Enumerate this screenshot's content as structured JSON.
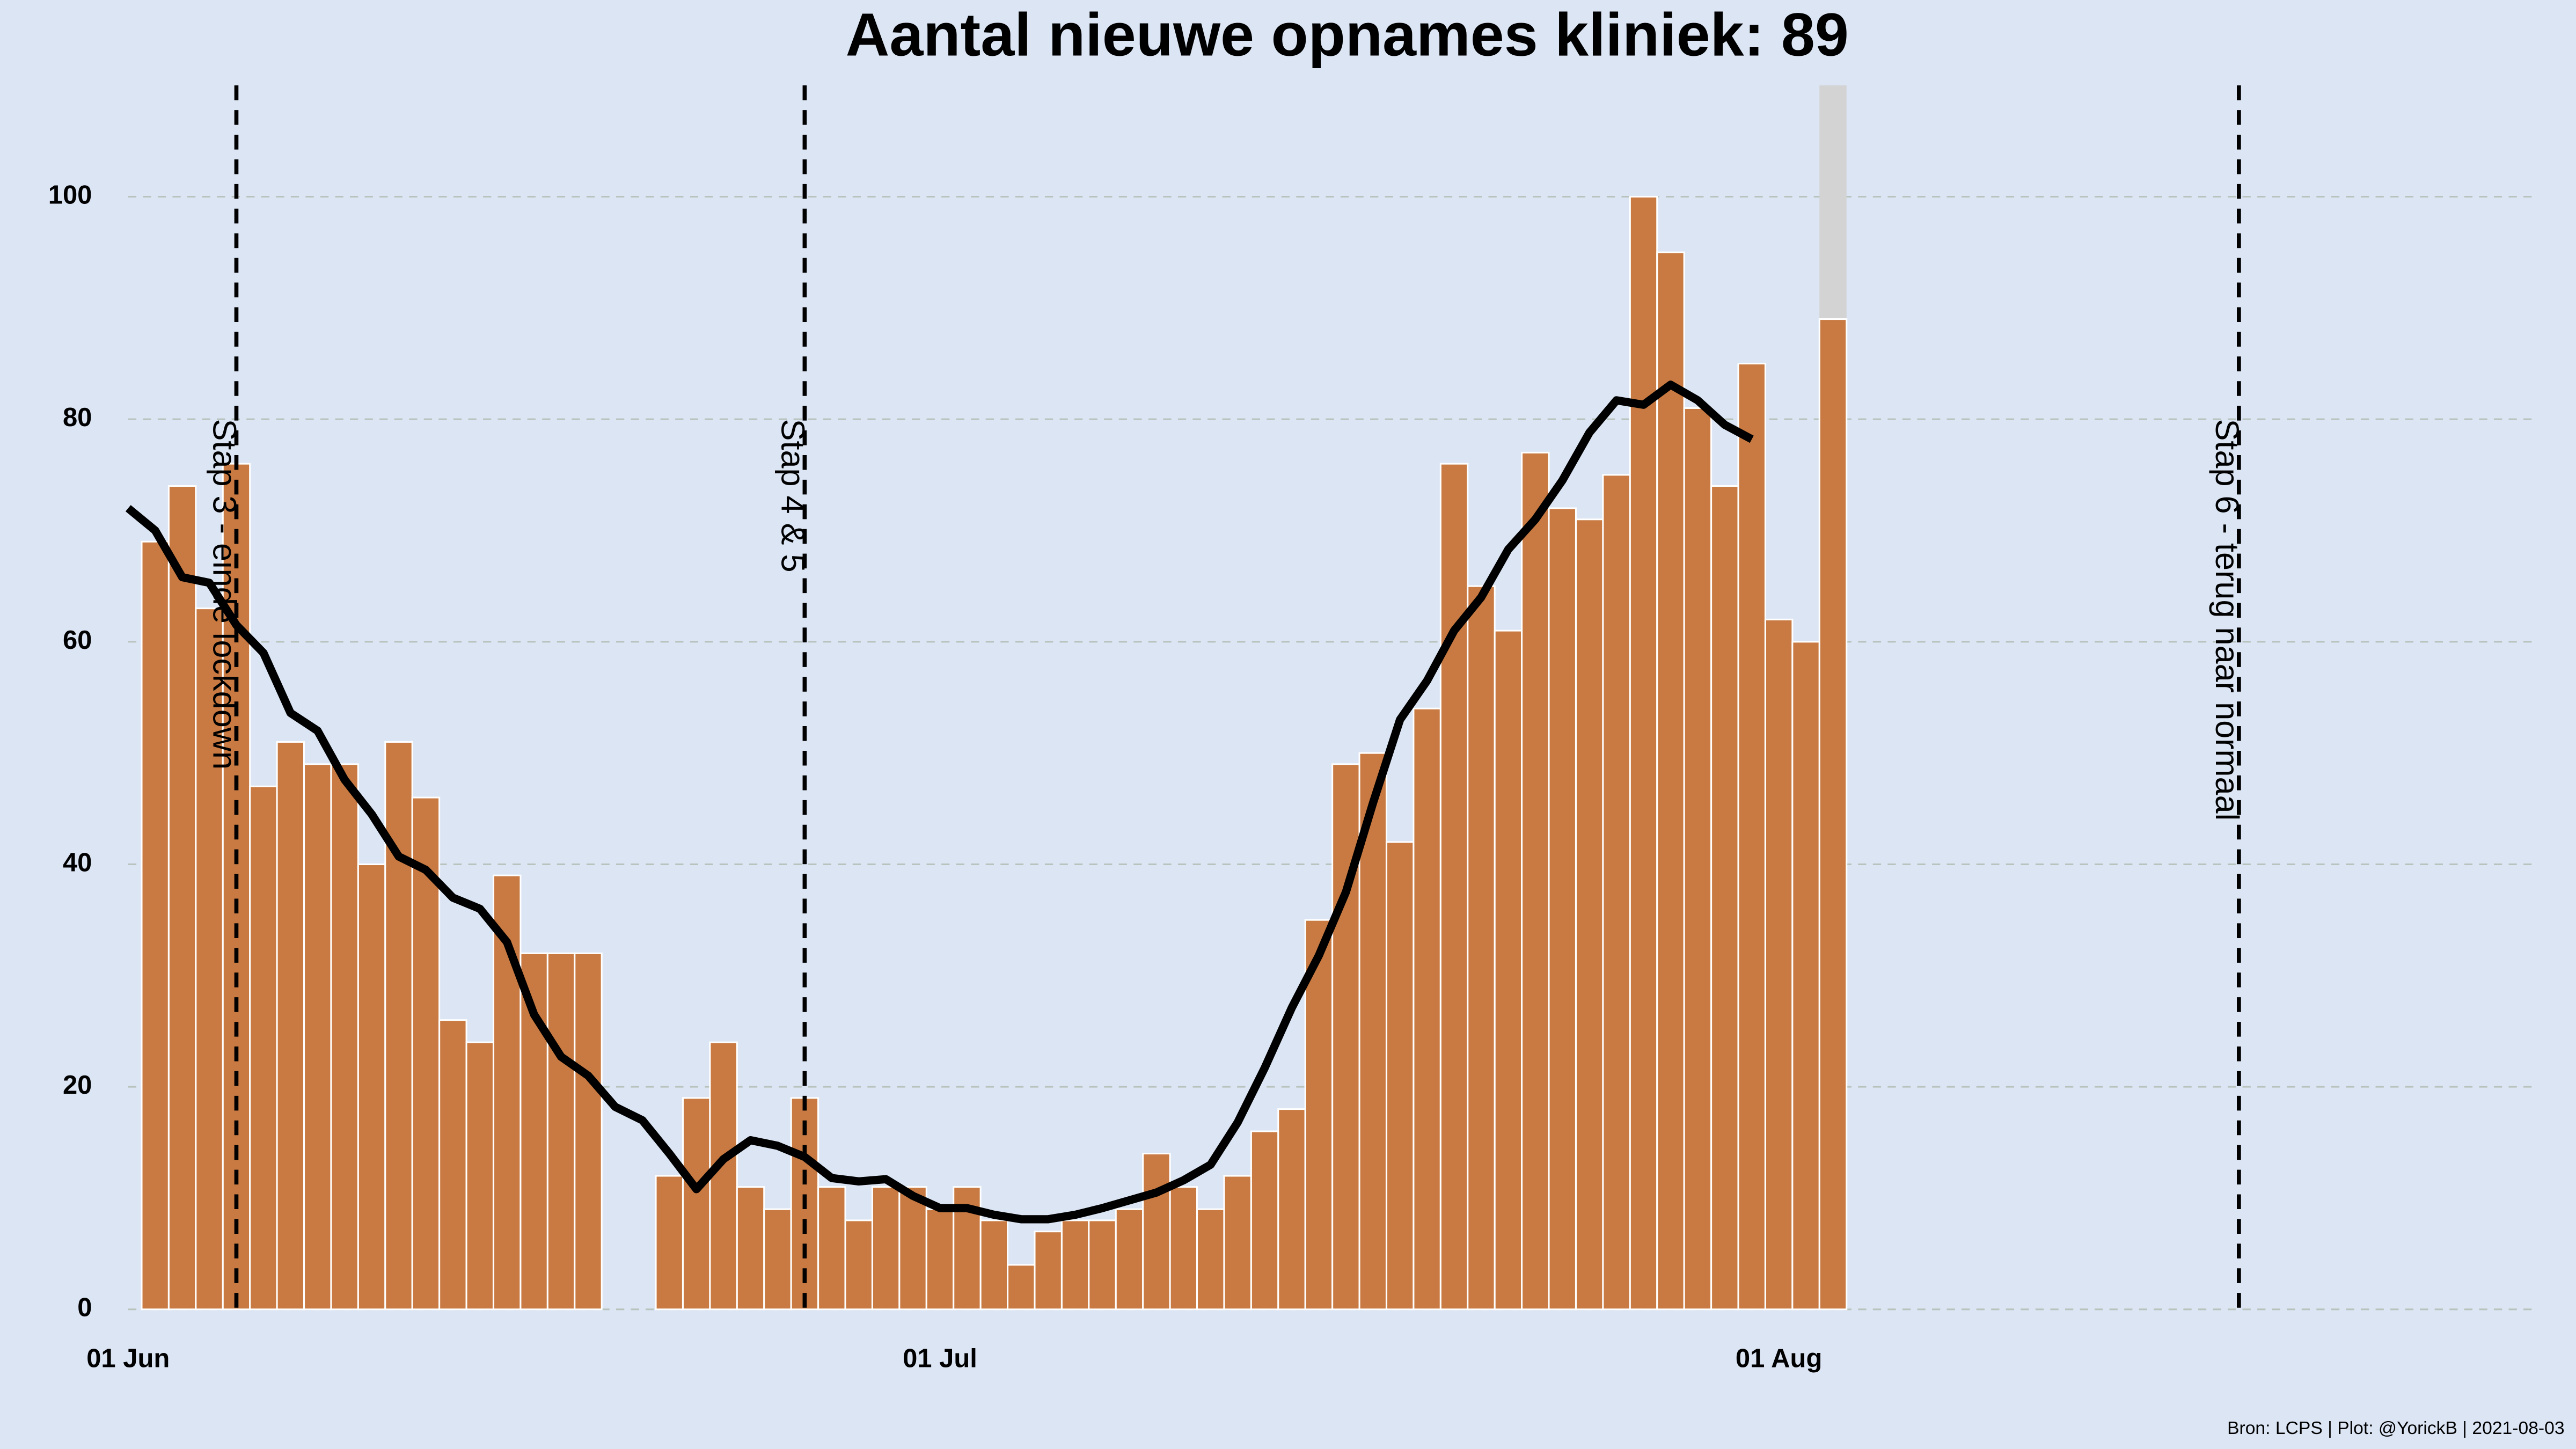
{
  "chart_data": {
    "type": "bar",
    "title": "Aantal nieuwe opnames kliniek:  89",
    "caption": "Bron: LCPS | Plot: @YorickB |  2021-08-03",
    "x": [
      "01 Jun",
      "02 Jun",
      "03 Jun",
      "04 Jun",
      "05 Jun",
      "06 Jun",
      "07 Jun",
      "08 Jun",
      "09 Jun",
      "10 Jun",
      "11 Jun",
      "12 Jun",
      "13 Jun",
      "14 Jun",
      "15 Jun",
      "16 Jun",
      "17 Jun",
      "18 Jun",
      "19 Jun",
      "20 Jun",
      "21 Jun",
      "22 Jun",
      "23 Jun",
      "24 Jun",
      "25 Jun",
      "26 Jun",
      "27 Jun",
      "28 Jun",
      "29 Jun",
      "30 Jun",
      "01 Jul",
      "02 Jul",
      "03 Jul",
      "04 Jul",
      "05 Jul",
      "06 Jul",
      "07 Jul",
      "08 Jul",
      "09 Jul",
      "10 Jul",
      "11 Jul",
      "12 Jul",
      "13 Jul",
      "14 Jul",
      "15 Jul",
      "16 Jul",
      "17 Jul",
      "18 Jul",
      "19 Jul",
      "20 Jul",
      "21 Jul",
      "22 Jul",
      "23 Jul",
      "24 Jul",
      "25 Jul",
      "26 Jul",
      "27 Jul",
      "28 Jul",
      "29 Jul",
      "30 Jul",
      "31 Jul",
      "01 Aug",
      "02 Aug",
      "03 Aug"
    ],
    "series": [
      {
        "type": "bar",
        "color": "#c87a42",
        "values": [
          null,
          69,
          74,
          63,
          76,
          47,
          51,
          49,
          49,
          40,
          51,
          46,
          26,
          24,
          39,
          32,
          32,
          32,
          null,
          null,
          12,
          19,
          24,
          11,
          9,
          19,
          11,
          8,
          11,
          11,
          9,
          11,
          8,
          4,
          7,
          8,
          8,
          9,
          14,
          11,
          9,
          12,
          16,
          18,
          35,
          49,
          50,
          42,
          54,
          76,
          65,
          61,
          77,
          72,
          71,
          75,
          100,
          95,
          81,
          74,
          85,
          62,
          60,
          89
        ]
      },
      {
        "type": "line",
        "color": "#000000",
        "values": [
          72,
          70,
          65.8,
          65.3,
          61.5,
          59,
          53.6,
          52,
          47.6,
          44.5,
          40.7,
          39.5,
          37,
          36,
          33,
          26.5,
          22.7,
          21,
          18.2,
          17,
          14,
          10.8,
          13.5,
          15.2,
          14.7,
          13.7,
          11.8,
          11.5,
          11.7,
          10.2,
          9.1,
          9.1,
          8.5,
          8.1,
          8.1,
          8.5,
          9.1,
          9.8,
          10.5,
          11.6,
          13,
          16.8,
          21.7,
          27.1,
          31.8,
          37.5,
          45.5,
          53,
          56.5,
          61,
          64,
          68.3,
          71,
          74.5,
          78.8,
          81.7,
          81.3,
          83.1,
          81.7,
          79.5,
          78.2,
          null,
          null,
          null
        ]
      }
    ],
    "annotations": [
      {
        "x": "05 Jun",
        "label": "Stap 3 - einde lockdown"
      },
      {
        "x": "26 Jun",
        "label": "Stap 4 & 5"
      },
      {
        "x": "18 Aug",
        "label": "Stap 6 - terug naar normaal"
      }
    ],
    "xlim": [
      "01 Jun",
      "29 Aug"
    ],
    "xticks": [
      "01 Jun",
      "01 Jul",
      "01 Aug"
    ],
    "ylim": [
      0,
      110
    ],
    "yticks": [
      0,
      20,
      40,
      60,
      80,
      100
    ],
    "grid": true
  }
}
